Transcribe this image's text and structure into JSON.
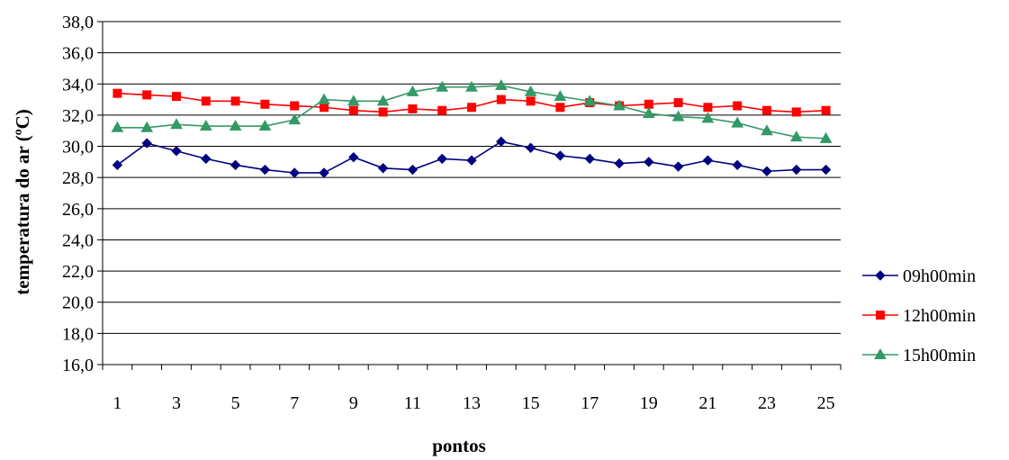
{
  "chart_data": {
    "type": "line",
    "title": "",
    "xlabel": "pontos",
    "ylabel": "temperatura do ar (ºC)",
    "ylim": [
      16,
      38
    ],
    "y_ticks": [
      "16,0",
      "18,0",
      "20,0",
      "22,0",
      "24,0",
      "26,0",
      "28,0",
      "30,0",
      "32,0",
      "34,0",
      "36,0",
      "38,0"
    ],
    "x": [
      1,
      2,
      3,
      4,
      5,
      6,
      7,
      8,
      9,
      10,
      11,
      12,
      13,
      14,
      15,
      16,
      17,
      18,
      19,
      20,
      21,
      22,
      23,
      24,
      25
    ],
    "x_tick_labels": [
      "1",
      "3",
      "5",
      "7",
      "9",
      "11",
      "13",
      "15",
      "17",
      "19",
      "21",
      "23",
      "25"
    ],
    "grid": "horizontal",
    "legend_position": "right",
    "series": [
      {
        "name": "09h00min",
        "color": "#000080",
        "marker": "diamond",
        "values": [
          28.8,
          30.2,
          29.7,
          29.2,
          28.8,
          28.5,
          28.3,
          28.3,
          29.3,
          28.6,
          28.5,
          29.2,
          29.1,
          30.3,
          29.9,
          29.4,
          29.2,
          28.9,
          29.0,
          28.7,
          29.1,
          28.8,
          28.4,
          28.5,
          28.5
        ]
      },
      {
        "name": "12h00min",
        "color": "#ff0000",
        "marker": "square",
        "values": [
          33.4,
          33.3,
          33.2,
          32.9,
          32.9,
          32.7,
          32.6,
          32.5,
          32.3,
          32.2,
          32.4,
          32.3,
          32.5,
          33.0,
          32.9,
          32.5,
          32.8,
          32.6,
          32.7,
          32.8,
          32.5,
          32.6,
          32.3,
          32.2,
          32.3
        ]
      },
      {
        "name": "15h00min",
        "color": "#339966",
        "marker": "triangle",
        "values": [
          31.2,
          31.2,
          31.4,
          31.3,
          31.3,
          31.3,
          31.7,
          33.0,
          32.9,
          32.9,
          33.5,
          33.8,
          33.8,
          33.9,
          33.5,
          33.2,
          32.9,
          32.6,
          32.1,
          31.9,
          31.8,
          31.5,
          31.0,
          30.6,
          30.5
        ]
      }
    ]
  }
}
